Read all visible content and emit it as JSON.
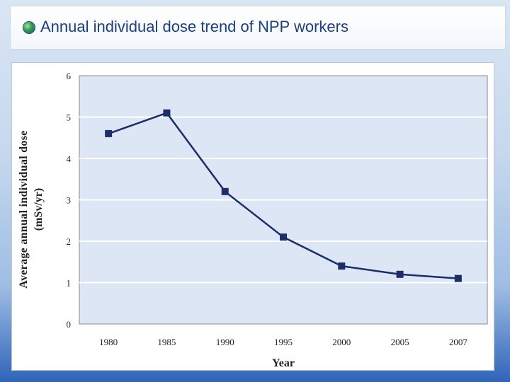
{
  "slide": {
    "title": "Annual individual dose trend of NPP workers"
  },
  "chart_data": {
    "type": "line",
    "categories": [
      "1980",
      "1985",
      "1990",
      "1995",
      "2000",
      "2005",
      "2007"
    ],
    "series": [
      {
        "values": [
          4.6,
          5.1,
          3.2,
          2.1,
          1.4,
          1.2,
          1.1
        ]
      }
    ],
    "ylabel_line1": "Average annual individual dose",
    "ylabel_line2": "(mSv/yr)",
    "xlabel": "Year",
    "ylim": [
      0,
      6
    ],
    "yticks": [
      "0",
      "1",
      "2",
      "3",
      "4",
      "5",
      "6"
    ],
    "grid": true,
    "legend": "none",
    "colors": {
      "series": "#1b2d6b",
      "plot_background": "#dde6f4",
      "gridline": "#ffffff"
    }
  }
}
